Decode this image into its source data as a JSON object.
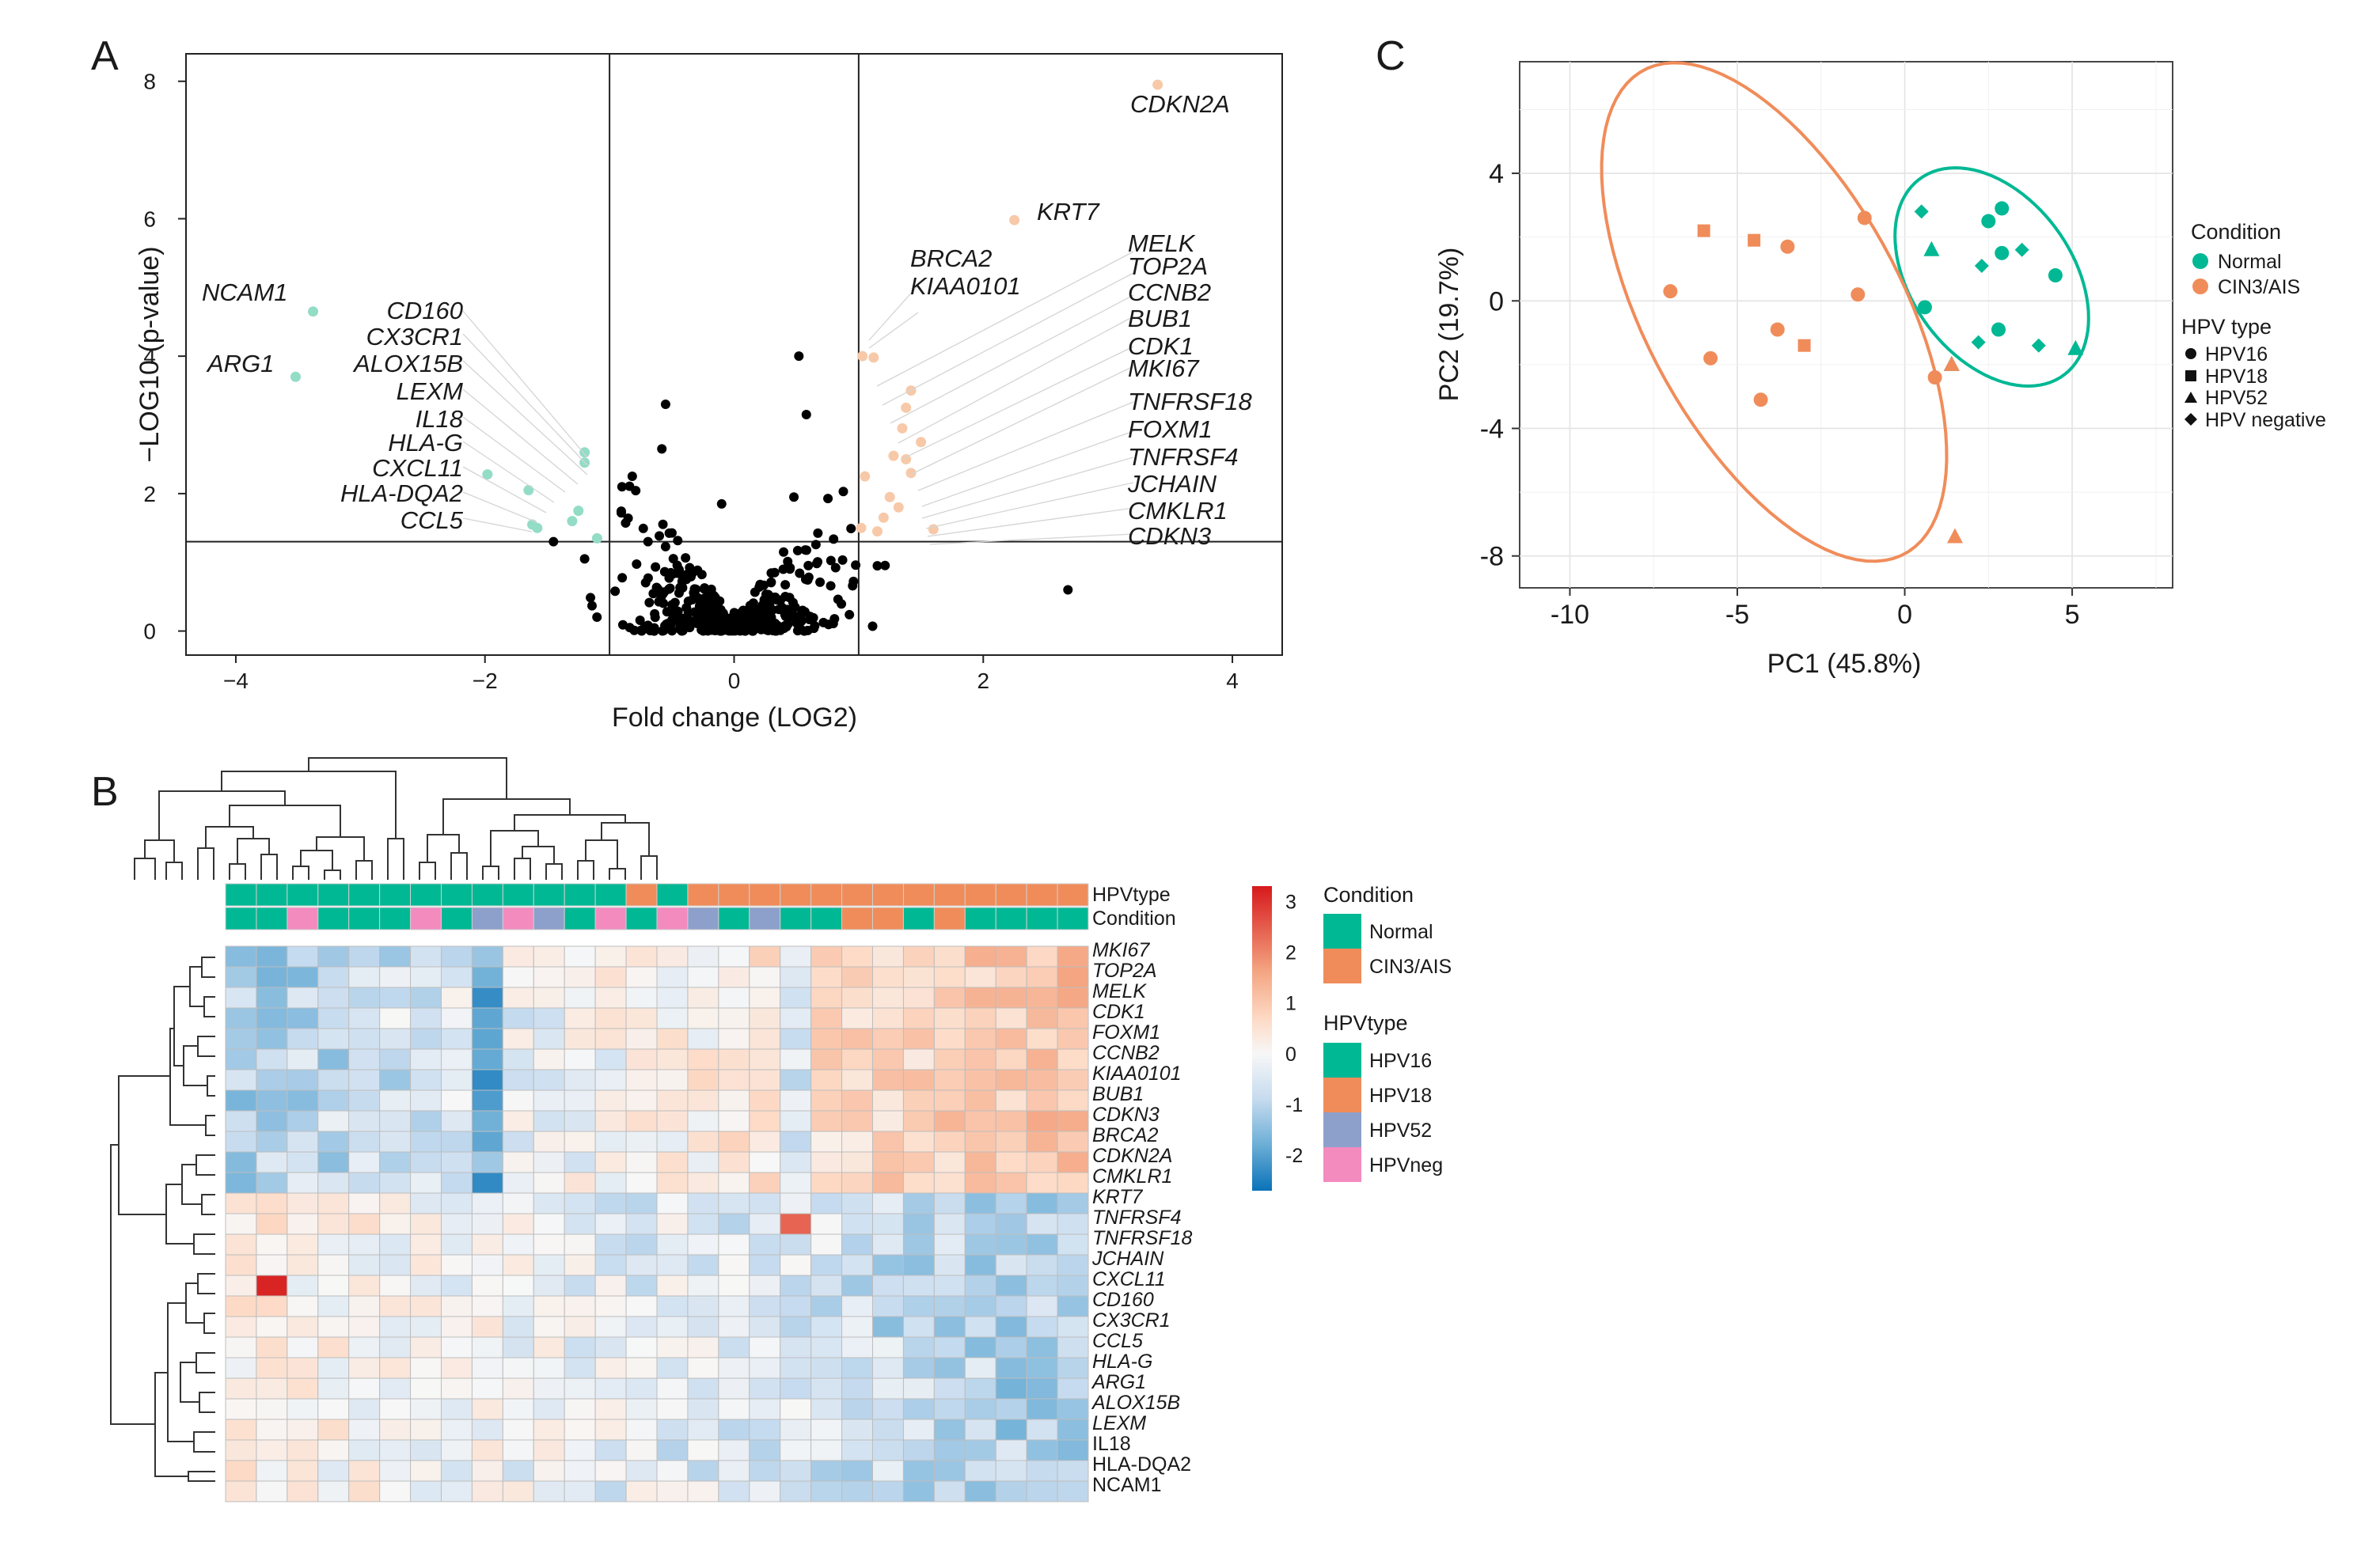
{
  "figure": {
    "panel_letters": [
      "A",
      "B",
      "C"
    ]
  },
  "colors": {
    "normal": "#00b894",
    "cin": "#f08c5a",
    "normal_light": "#93dcc6",
    "cin_light": "#f7c9a8",
    "hpv52": "#8da0cb",
    "hpvneg": "#f38bbf",
    "neutral": "#000000"
  },
  "chart_data": [
    {
      "panel": "A",
      "type": "scatter",
      "title": "",
      "xlabel": "Fold change (LOG2)",
      "ylabel": "−LOG10 (p-value)",
      "xlim": [
        -4.4,
        4.4
      ],
      "ylim": [
        -0.35,
        8.4
      ],
      "xticks": [
        -4,
        -2,
        0,
        2,
        4
      ],
      "xtick_labels": [
        "−4",
        "−2",
        "0",
        "2",
        "4"
      ],
      "yticks": [
        0,
        2,
        4,
        6,
        8
      ],
      "ytick_labels": [
        "0",
        "2",
        "4",
        "6",
        "8"
      ],
      "threshold_lines": {
        "x": [
          -1,
          1
        ],
        "y": 1.3
      },
      "down_points": [
        [
          -3.38,
          4.65
        ],
        [
          -3.52,
          3.7
        ],
        [
          -1.2,
          2.6
        ],
        [
          -1.2,
          2.45
        ],
        [
          -1.98,
          2.28
        ],
        [
          -1.65,
          2.05
        ],
        [
          -1.25,
          1.75
        ],
        [
          -1.3,
          1.6
        ],
        [
          -1.62,
          1.55
        ],
        [
          -1.58,
          1.5
        ],
        [
          -1.1,
          1.35
        ]
      ],
      "up_points": [
        [
          3.4,
          7.95
        ],
        [
          2.25,
          5.98
        ],
        [
          1.03,
          4.0
        ],
        [
          1.12,
          3.98
        ],
        [
          1.42,
          3.5
        ],
        [
          1.38,
          3.25
        ],
        [
          1.35,
          2.95
        ],
        [
          1.5,
          2.75
        ],
        [
          1.28,
          2.55
        ],
        [
          1.38,
          2.5
        ],
        [
          1.05,
          2.25
        ],
        [
          1.42,
          2.3
        ],
        [
          1.25,
          1.95
        ],
        [
          1.32,
          1.8
        ],
        [
          1.2,
          1.65
        ],
        [
          1.02,
          1.5
        ],
        [
          1.6,
          1.48
        ],
        [
          1.15,
          1.45
        ]
      ],
      "label_groups": [
        {
          "side": "left",
          "genes": [
            "NCAM1",
            "ARG1"
          ]
        },
        {
          "side": "left",
          "genes": [
            "CD160",
            "CX3CR1",
            "ALOX15B",
            "LEXM",
            "IL18",
            "HLA-G",
            "CXCL11",
            "HLA-DQA2",
            "CCL5"
          ]
        },
        {
          "side": "right",
          "genes": [
            "CDKN2A",
            "KRT7",
            "BRCA2",
            "KIAA0101"
          ]
        },
        {
          "side": "right",
          "genes": [
            "MELK",
            "TOP2A",
            "CCNB2",
            "BUB1",
            "CDK1",
            "MKI67",
            "TNFRSF18",
            "FOXM1",
            "TNFRSF4",
            "JCHAIN",
            "CMKLR1",
            "CDKN3"
          ]
        }
      ]
    },
    {
      "panel": "B",
      "type": "heatmap",
      "title": "",
      "row_labels": [
        "MKI67",
        "TOP2A",
        "MELK",
        "CDK1",
        "FOXM1",
        "CCNB2",
        "KIAA0101",
        "BUB1",
        "CDKN3",
        "BRCA2",
        "CDKN2A",
        "CMKLR1",
        "KRT7",
        "TNFRSF4",
        "TNFRSF18",
        "JCHAIN",
        "CXCL11",
        "CD160",
        "CX3CR1",
        "CCL5",
        "HLA-G",
        "ARG1",
        "ALOX15B",
        "LEXM",
        "IL18",
        "HLA-DQA2",
        "NCAM1"
      ],
      "upright_row_labels": [
        "IL18",
        "HLA-DQA2",
        "NCAM1"
      ],
      "annotation_rows": [
        {
          "name": "HPVtype",
          "values": [
            "N",
            "N",
            "N",
            "N",
            "N",
            "N",
            "N",
            "N",
            "N",
            "N",
            "N",
            "N",
            "N",
            "C",
            "N",
            "C",
            "C",
            "C",
            "C",
            "C",
            "C",
            "C",
            "C",
            "C",
            "C",
            "C",
            "C",
            "C"
          ]
        },
        {
          "name": "Condition",
          "values": [
            "N",
            "N",
            "neg",
            "N",
            "N",
            "N",
            "neg",
            "N",
            "52",
            "neg",
            "52",
            "N",
            "neg",
            "N",
            "neg",
            "52",
            "N",
            "52",
            "N",
            "N",
            "C",
            "C",
            "N",
            "C",
            "N",
            "N",
            "N",
            "N"
          ]
        }
      ],
      "color_scale": {
        "min": -2.7,
        "max": 3.3,
        "ticks": [
          3,
          2,
          1,
          0,
          -1,
          -2
        ],
        "tick_labels": [
          "3",
          "2",
          "1",
          "0",
          "-1",
          "-2"
        ]
      },
      "legend": {
        "condition_title": "Condition",
        "condition_items": [
          "Normal",
          "CIN3/AIS"
        ],
        "hpv_title": "HPVtype",
        "hpv_items": [
          "HPV16",
          "HPV18",
          "HPV52",
          "HPVneg"
        ]
      }
    },
    {
      "panel": "C",
      "type": "scatter",
      "title": "",
      "xlabel": "PC1 (45.8%)",
      "ylabel": "PC2 (19.7%)",
      "xlim": [
        -11.5,
        8.0
      ],
      "ylim": [
        -9.0,
        7.5
      ],
      "xticks": [
        -10,
        -5,
        0,
        5
      ],
      "xtick_labels": [
        "-10",
        "-5",
        "0",
        "5"
      ],
      "yticks": [
        4,
        0,
        -4,
        -8
      ],
      "ytick_labels": [
        "4",
        "0",
        "-4",
        "-8"
      ],
      "points": [
        {
          "x": 0.5,
          "y": 2.8,
          "group": "normal",
          "hpv": "negative"
        },
        {
          "x": 0.8,
          "y": 1.6,
          "group": "normal",
          "hpv": "HPV52"
        },
        {
          "x": 2.3,
          "y": 1.1,
          "group": "normal",
          "hpv": "negative"
        },
        {
          "x": 2.5,
          "y": 2.5,
          "group": "normal",
          "hpv": "HPV16"
        },
        {
          "x": 2.9,
          "y": 2.9,
          "group": "normal",
          "hpv": "HPV16"
        },
        {
          "x": 2.9,
          "y": 1.5,
          "group": "normal",
          "hpv": "HPV16"
        },
        {
          "x": 3.5,
          "y": 1.6,
          "group": "normal",
          "hpv": "negative"
        },
        {
          "x": 4.5,
          "y": 0.8,
          "group": "normal",
          "hpv": "HPV16"
        },
        {
          "x": 0.6,
          "y": -0.2,
          "group": "normal",
          "hpv": "HPV16"
        },
        {
          "x": 2.8,
          "y": -0.9,
          "group": "normal",
          "hpv": "HPV16"
        },
        {
          "x": 2.2,
          "y": -1.3,
          "group": "normal",
          "hpv": "negative"
        },
        {
          "x": 4.0,
          "y": -1.4,
          "group": "normal",
          "hpv": "negative"
        },
        {
          "x": 5.1,
          "y": -1.5,
          "group": "normal",
          "hpv": "HPV52"
        },
        {
          "x": 1.4,
          "y": -2.0,
          "group": "normal",
          "hpv": "HPV52"
        },
        {
          "x": -6.0,
          "y": 2.2,
          "group": "cin",
          "hpv": "HPV18"
        },
        {
          "x": -4.5,
          "y": 1.9,
          "group": "cin",
          "hpv": "HPV18"
        },
        {
          "x": -3.5,
          "y": 1.7,
          "group": "cin",
          "hpv": "HPV16"
        },
        {
          "x": -1.2,
          "y": 2.6,
          "group": "cin",
          "hpv": "HPV16"
        },
        {
          "x": -7.0,
          "y": 0.3,
          "group": "cin",
          "hpv": "HPV16"
        },
        {
          "x": -1.4,
          "y": 0.2,
          "group": "cin",
          "hpv": "HPV16"
        },
        {
          "x": -3.8,
          "y": -0.9,
          "group": "cin",
          "hpv": "HPV16"
        },
        {
          "x": -3.0,
          "y": -1.4,
          "group": "cin",
          "hpv": "HPV18"
        },
        {
          "x": -5.8,
          "y": -1.8,
          "group": "cin",
          "hpv": "HPV16"
        },
        {
          "x": -4.3,
          "y": -3.1,
          "group": "cin",
          "hpv": "HPV16"
        },
        {
          "x": 0.9,
          "y": -2.4,
          "group": "cin",
          "hpv": "HPV16"
        },
        {
          "x": 1.4,
          "y": -2.0,
          "group": "cin",
          "hpv": "HPV52"
        },
        {
          "x": 1.5,
          "y": -7.4,
          "group": "cin",
          "hpv": "HPV52"
        }
      ],
      "ellipses": [
        {
          "group": "normal",
          "cx": 2.6,
          "cy": 0.75,
          "rx": 5.8,
          "ry": 3.2,
          "angle_deg": -20
        },
        {
          "group": "cin",
          "cx": -3.9,
          "cy": -0.35,
          "rx": 11.5,
          "ry": 5.8,
          "angle_deg": -36
        }
      ],
      "legend": {
        "condition_title": "Condition",
        "condition_items": [
          "Normal",
          "CIN3/AIS"
        ],
        "hpv_title": "HPV type",
        "hpv_items": [
          "HPV16",
          "HPV18",
          "HPV52",
          "HPV negative"
        ]
      }
    }
  ]
}
